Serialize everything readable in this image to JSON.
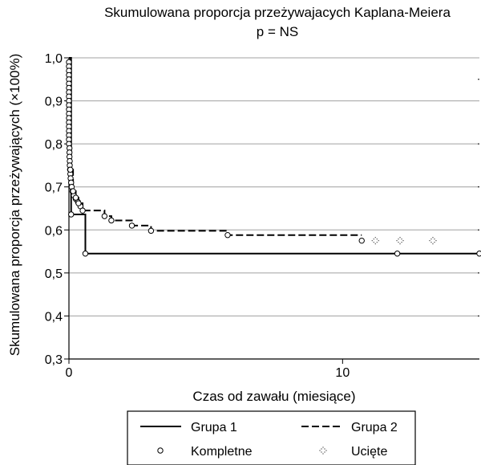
{
  "chart_data": {
    "type": "line",
    "title_line1": "Skumulowana proporcja przeżywajacych Kaplana-Meiera",
    "title_line2": "p = NS",
    "xlabel": "Czas od zawału (miesiące)",
    "ylabel": "Skumulowana proporcja przeżywających (×100%)",
    "xlim": [
      0,
      15
    ],
    "ylim": [
      0.3,
      1.0
    ],
    "x_ticks": [
      0,
      10
    ],
    "x_tick_labels": [
      "0",
      "10"
    ],
    "y_ticks": [
      0.3,
      0.4,
      0.5,
      0.6,
      0.7,
      0.8,
      0.9,
      1.0
    ],
    "y_tick_labels": [
      "0,3",
      "0,4",
      "0,5",
      "0,6",
      "0,7",
      "0,8",
      "0,9",
      "1,0"
    ],
    "grid": "horizontal",
    "series": [
      {
        "name": "Grupa 1",
        "style": "solid",
        "steps": [
          [
            0,
            1.0
          ],
          [
            0.08,
            0.636
          ],
          [
            0.6,
            0.545
          ],
          [
            15,
            0.545
          ]
        ],
        "complete": [
          [
            0.08,
            0.636
          ],
          [
            0.6,
            0.545
          ],
          [
            12,
            0.545
          ],
          [
            15,
            0.545
          ]
        ],
        "censored": []
      },
      {
        "name": "Grupa 2",
        "style": "dashed",
        "steps": [
          [
            0,
            1.0
          ],
          [
            0.05,
            0.74
          ],
          [
            0.15,
            0.69
          ],
          [
            0.25,
            0.675
          ],
          [
            0.35,
            0.662
          ],
          [
            0.5,
            0.645
          ],
          [
            1.3,
            0.632
          ],
          [
            1.55,
            0.622
          ],
          [
            2.3,
            0.61
          ],
          [
            3.0,
            0.598
          ],
          [
            5.8,
            0.588
          ],
          [
            10.7,
            0.588
          ]
        ],
        "complete": [
          [
            0.05,
            0.74
          ],
          [
            0.15,
            0.69
          ],
          [
            0.25,
            0.675
          ],
          [
            0.35,
            0.662
          ],
          [
            0.5,
            0.645
          ],
          [
            1.3,
            0.632
          ],
          [
            1.55,
            0.622
          ],
          [
            2.3,
            0.61
          ],
          [
            3.0,
            0.598
          ],
          [
            5.8,
            0.588
          ],
          [
            10.7,
            0.575
          ]
        ],
        "censored": [
          [
            11.2,
            0.575
          ],
          [
            12.1,
            0.575
          ],
          [
            13.3,
            0.575
          ]
        ]
      }
    ],
    "early_complete_events": [
      [
        0,
        0.99
      ],
      [
        0,
        0.98
      ],
      [
        0,
        0.97
      ],
      [
        0,
        0.96
      ],
      [
        0,
        0.95
      ],
      [
        0,
        0.94
      ],
      [
        0,
        0.93
      ],
      [
        0,
        0.92
      ],
      [
        0,
        0.91
      ],
      [
        0,
        0.9
      ],
      [
        0,
        0.89
      ],
      [
        0,
        0.88
      ],
      [
        0,
        0.87
      ],
      [
        0,
        0.86
      ],
      [
        0,
        0.85
      ],
      [
        0,
        0.84
      ],
      [
        0,
        0.83
      ],
      [
        0,
        0.82
      ],
      [
        0,
        0.81
      ],
      [
        0,
        0.8
      ],
      [
        0.02,
        0.79
      ],
      [
        0.02,
        0.78
      ],
      [
        0.02,
        0.77
      ],
      [
        0.03,
        0.76
      ],
      [
        0.03,
        0.75
      ],
      [
        0.04,
        0.74
      ],
      [
        0.05,
        0.73
      ],
      [
        0.06,
        0.72
      ],
      [
        0.08,
        0.71
      ],
      [
        0.1,
        0.7
      ],
      [
        0.13,
        0.69
      ],
      [
        0.18,
        0.68
      ],
      [
        0.25,
        0.672
      ],
      [
        0.33,
        0.665
      ],
      [
        0.42,
        0.655
      ]
    ],
    "legend": {
      "placement": "bottom",
      "items": [
        {
          "label": "Grupa 1",
          "symbol": "solid-line"
        },
        {
          "label": "Grupa 2",
          "symbol": "dashed-line"
        },
        {
          "label": "Kompletne",
          "symbol": "open-circle"
        },
        {
          "label": "Ucięte",
          "symbol": "dotted-cross"
        }
      ]
    },
    "colors": {
      "line": "#000000",
      "grid": "#a0a0a0",
      "background": "#ffffff"
    }
  }
}
